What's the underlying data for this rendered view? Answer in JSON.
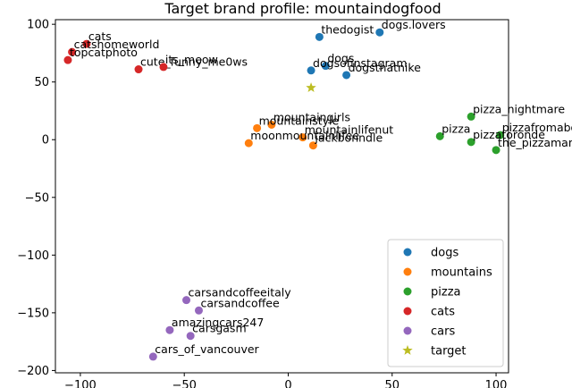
{
  "chart_data": {
    "type": "scatter",
    "title": "Target brand profile: mountaindogfood",
    "xlabel": "",
    "ylabel": "",
    "xlim": [
      -112,
      106
    ],
    "ylim": [
      -202,
      104
    ],
    "xticks": [
      -100,
      -50,
      0,
      50,
      100
    ],
    "yticks": [
      100,
      50,
      0,
      -50,
      -100,
      -150,
      -200
    ],
    "xtick_labels": [
      "−100",
      "−50",
      "0",
      "50",
      "100"
    ],
    "ytick_labels": [
      "100",
      "50",
      "0",
      "−50",
      "−100",
      "−150",
      "−200"
    ],
    "legend_position": "lower-right",
    "grid": false,
    "series": [
      {
        "name": "dogs",
        "color": "#1f77b4",
        "marker": "circle",
        "points": [
          {
            "x": 15,
            "y": 89,
            "label": "thedogist"
          },
          {
            "x": 44,
            "y": 93,
            "label": "dogs.lovers"
          },
          {
            "x": 18,
            "y": 64,
            "label": "dogs"
          },
          {
            "x": 11,
            "y": 60,
            "label": "dogsofinstagram"
          },
          {
            "x": 28,
            "y": 56,
            "label": "dogsthatnike"
          }
        ]
      },
      {
        "name": "mountains",
        "color": "#ff7f0e",
        "marker": "circle",
        "points": [
          {
            "x": -8,
            "y": 13,
            "label": "mountaingirls"
          },
          {
            "x": -15,
            "y": 10,
            "label": "mountainstyle"
          },
          {
            "x": 7,
            "y": 2,
            "label": "mountainlifenut"
          },
          {
            "x": -19,
            "y": -3,
            "label": "moonmountainlifee"
          },
          {
            "x": 12,
            "y": -5,
            "label": "jackbonndle"
          }
        ]
      },
      {
        "name": "pizza",
        "color": "#2ca02c",
        "marker": "circle",
        "points": [
          {
            "x": 88,
            "y": 20,
            "label": "pizza_nightmare"
          },
          {
            "x": 73,
            "y": 3,
            "label": "pizza"
          },
          {
            "x": 102,
            "y": 4,
            "label": "pizzafromabove"
          },
          {
            "x": 88,
            "y": -2,
            "label": "pizzatoronde"
          },
          {
            "x": 100,
            "y": -9,
            "label": "the_pizzaman"
          }
        ]
      },
      {
        "name": "cats",
        "color": "#d62728",
        "marker": "circle",
        "points": [
          {
            "x": -97,
            "y": 83,
            "label": "cats"
          },
          {
            "x": -104,
            "y": 76,
            "label": "catshomeworld"
          },
          {
            "x": -106,
            "y": 69,
            "label": "topcatphoto"
          },
          {
            "x": -72,
            "y": 61,
            "label": "cute_funny_me0ws"
          },
          {
            "x": -60,
            "y": 63,
            "label": "its_meow"
          }
        ]
      },
      {
        "name": "cars",
        "color": "#9467bd",
        "marker": "circle",
        "points": [
          {
            "x": -49,
            "y": -139,
            "label": "carsandcoffeeitaly"
          },
          {
            "x": -43,
            "y": -148,
            "label": "carsandcoffee"
          },
          {
            "x": -57,
            "y": -165,
            "label": "amazingcars247"
          },
          {
            "x": -47,
            "y": -170,
            "label": "carsgasm"
          },
          {
            "x": -65,
            "y": -188,
            "label": "cars_of_vancouver"
          }
        ]
      },
      {
        "name": "target",
        "color": "#bcbd22",
        "marker": "star",
        "points": [
          {
            "x": 11,
            "y": 45,
            "label": ""
          }
        ]
      }
    ]
  }
}
